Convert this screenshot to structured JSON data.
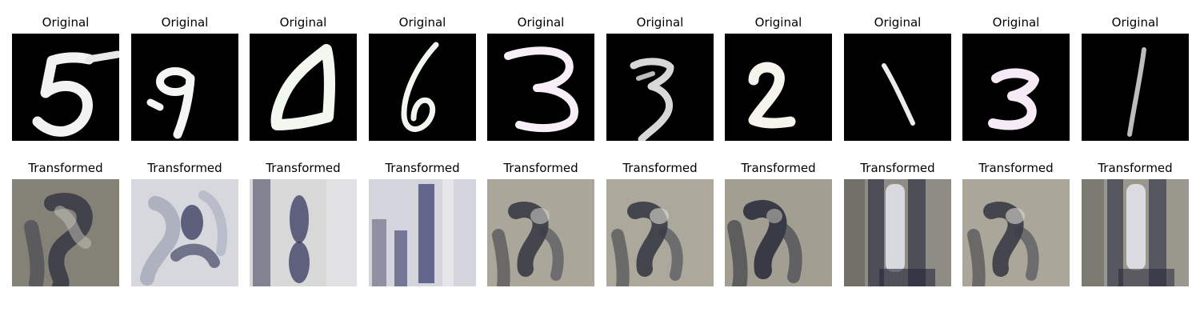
{
  "figure": {
    "original_label": "Original",
    "transformed_label": "Transformed",
    "originals": [
      {
        "digit": "5",
        "stroke_color": "#f2f2f2"
      },
      {
        "digit": "9",
        "stroke_color": "#f4f6f4"
      },
      {
        "digit": "0",
        "stroke_color": "#f2f8f0"
      },
      {
        "digit": "6",
        "stroke_color": "#f2f8f0"
      },
      {
        "digit": "3",
        "stroke_color": "#f8eef8"
      },
      {
        "digit": "3",
        "stroke_color": "#d8d8d8"
      },
      {
        "digit": "2",
        "stroke_color": "#f4f4ec"
      },
      {
        "digit": "1",
        "stroke_color": "#ececec"
      },
      {
        "digit": "3",
        "stroke_color": "#f6eaf6"
      },
      {
        "digit": "1",
        "stroke_color": "#bdbdbd"
      }
    ],
    "transformed": [
      {
        "style": "dark-blurred",
        "bg": "#8f8c80",
        "ink": "#2c2e3c"
      },
      {
        "style": "light-blurred",
        "bg": "#d6d8de",
        "ink": "#34385c"
      },
      {
        "style": "light-double-stroke",
        "bg": "#d8d8d8",
        "ink": "#2c2c58"
      },
      {
        "style": "light-double-stroke",
        "bg": "#d4d4dc",
        "ink": "#343868"
      },
      {
        "style": "dark-blurred",
        "bg": "#aaa69a",
        "ink": "#2b2d3a"
      },
      {
        "style": "dark-blurred",
        "bg": "#aca89c",
        "ink": "#2b2d3a"
      },
      {
        "style": "dark-blurred",
        "bg": "#a29e92",
        "ink": "#262838"
      },
      {
        "style": "bright-bar",
        "bg": "#8e8c84",
        "ink": "#2a2c40"
      },
      {
        "style": "dark-blurred",
        "bg": "#aaa69a",
        "ink": "#2b2d3a"
      },
      {
        "style": "bright-bar",
        "bg": "#9a988e",
        "ink": "#2a2c40"
      }
    ]
  }
}
